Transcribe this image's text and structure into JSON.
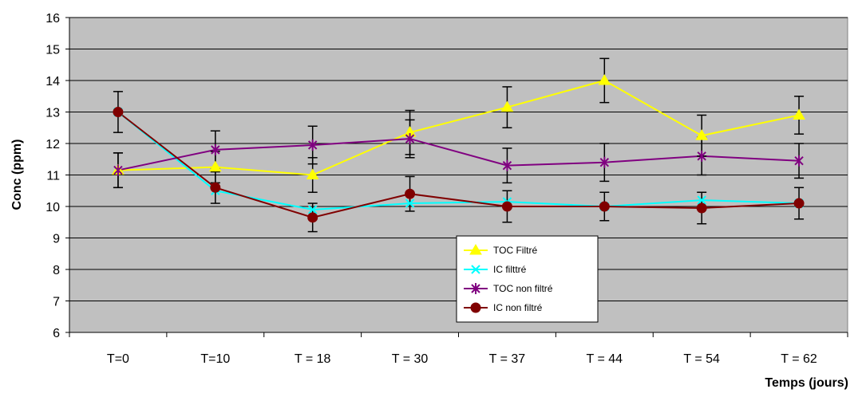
{
  "chart_data": {
    "type": "line",
    "title": "",
    "xlabel": "Temps (jours)",
    "ylabel": "Conc (ppm)",
    "categories": [
      "T=0",
      "T=10",
      "T = 18",
      "T = 30",
      "T = 37",
      "T = 44",
      "T = 54",
      "T = 62"
    ],
    "ylim": [
      6,
      16
    ],
    "yticks": [
      6,
      7,
      8,
      9,
      10,
      11,
      12,
      13,
      14,
      15,
      16
    ],
    "grid": true,
    "legend_position": "bottom-center",
    "plot_background": "#c0c0c0",
    "series": [
      {
        "name": "TOC Filtré",
        "color": "#ffff00",
        "marker": "triangle",
        "values": [
          11.15,
          11.25,
          11.0,
          12.35,
          13.15,
          14.0,
          12.25,
          12.9
        ],
        "error": [
          0.55,
          0.5,
          0.55,
          0.7,
          0.65,
          0.7,
          0.65,
          0.6
        ]
      },
      {
        "name": "IC filttré",
        "color": "#00ffff",
        "marker": "x",
        "values": [
          13.0,
          10.5,
          9.9,
          10.1,
          10.15,
          10.0,
          10.2,
          10.1
        ],
        "error": [
          0.0,
          0.0,
          0.0,
          0.0,
          0.0,
          0.0,
          0.0,
          0.0
        ]
      },
      {
        "name": "TOC non filtré",
        "color": "#800080",
        "marker": "star",
        "values": [
          11.15,
          11.8,
          11.95,
          12.15,
          11.3,
          11.4,
          11.6,
          11.45
        ],
        "error": [
          0.55,
          0.6,
          0.6,
          0.6,
          0.55,
          0.6,
          0.6,
          0.55
        ]
      },
      {
        "name": "IC non filtré",
        "color": "#800000",
        "marker": "circle",
        "values": [
          13.0,
          10.6,
          9.65,
          10.4,
          10.0,
          10.0,
          9.95,
          10.1
        ],
        "error": [
          0.65,
          0.5,
          0.45,
          0.55,
          0.5,
          0.45,
          0.5,
          0.5
        ]
      }
    ]
  }
}
